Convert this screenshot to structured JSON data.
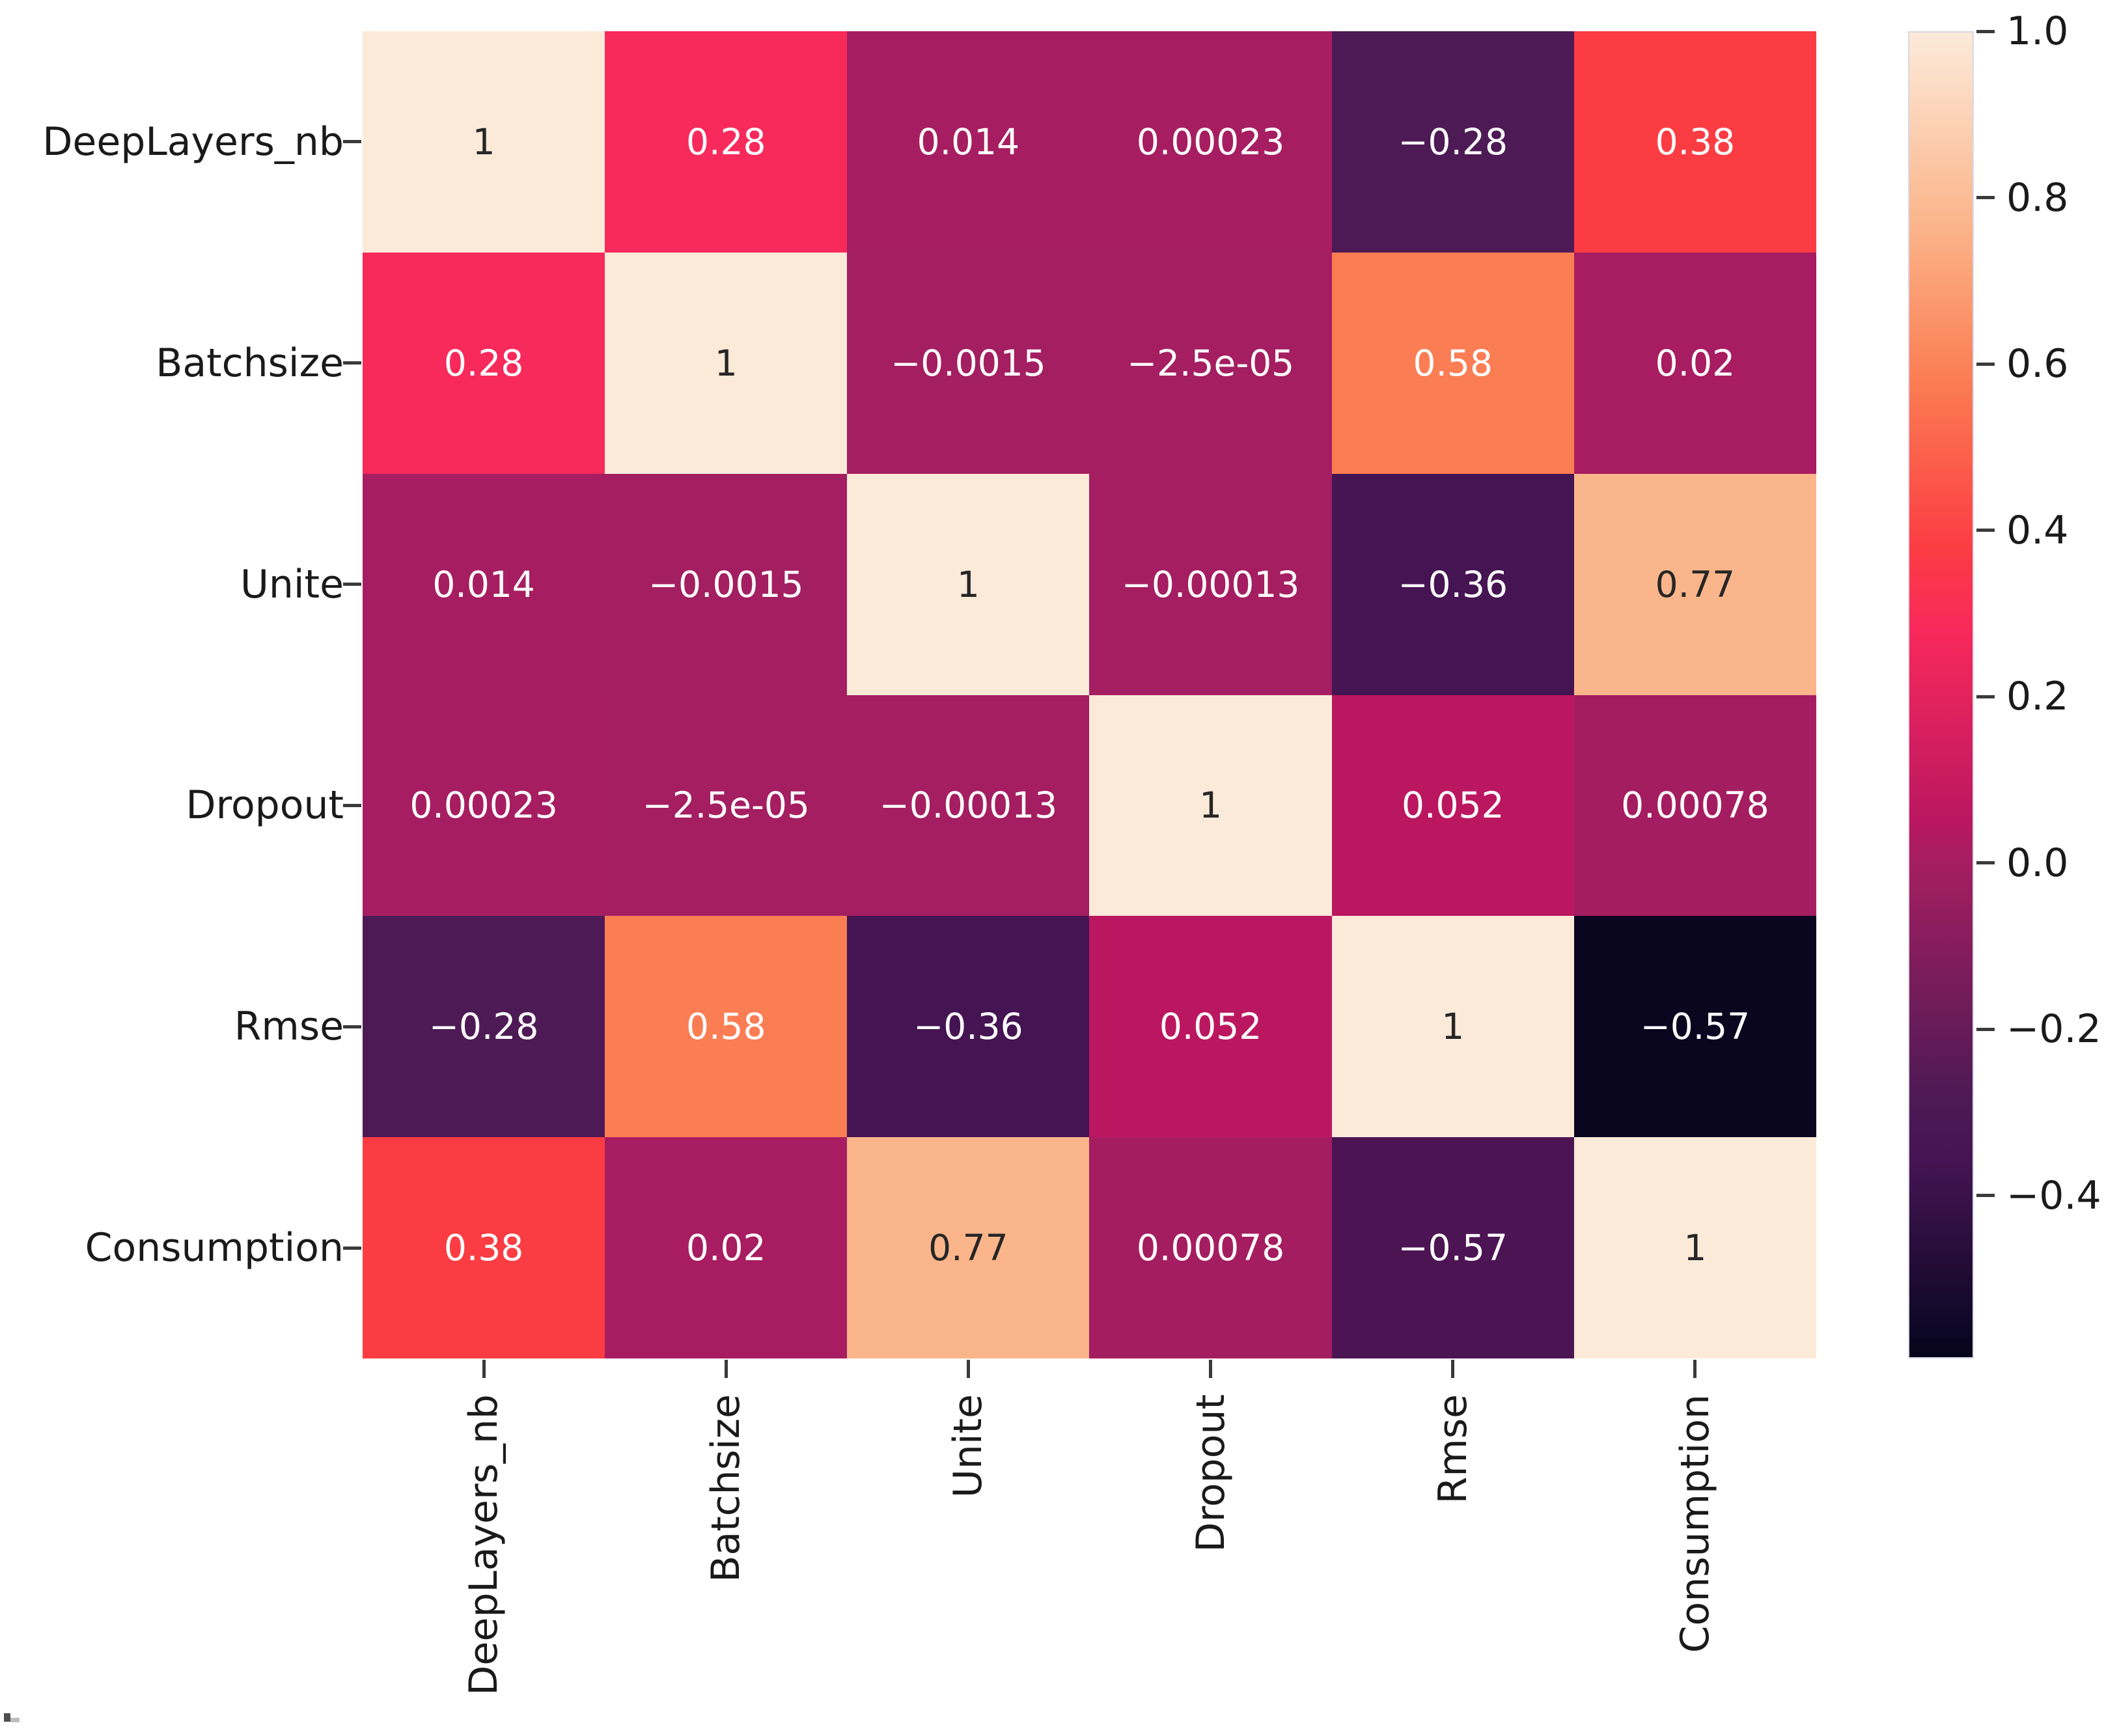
{
  "chart_data": {
    "type": "heatmap",
    "title": "",
    "variables": [
      "DeepLayers_nb",
      "Batchsize",
      "Unite",
      "Dropout",
      "Rmse",
      "Consumption"
    ],
    "matrix": [
      [
        1,
        0.28,
        0.014,
        0.00023,
        -0.28,
        0.38
      ],
      [
        0.28,
        1,
        -0.0015,
        -2.5e-05,
        0.58,
        0.02
      ],
      [
        0.014,
        -0.0015,
        1,
        -0.00013,
        -0.36,
        0.77
      ],
      [
        0.00023,
        -2.5e-05,
        -0.00013,
        1,
        0.052,
        0.00078
      ],
      [
        -0.28,
        0.58,
        -0.36,
        0.052,
        1,
        -0.57
      ],
      [
        0.38,
        0.02,
        0.77,
        0.00078,
        -0.57,
        1
      ]
    ],
    "annotations": [
      [
        "1",
        "0.28",
        "0.014",
        "0.00023",
        "−0.28",
        "0.38"
      ],
      [
        "0.28",
        "1",
        "−0.0015",
        "−2.5e-05",
        "0.58",
        "0.02"
      ],
      [
        "0.014",
        "−0.0015",
        "1",
        "−0.00013",
        "−0.36",
        "0.77"
      ],
      [
        "0.00023",
        "−2.5e-05",
        "−0.00013",
        "1",
        "0.052",
        "0.00078"
      ],
      [
        "−0.28",
        "0.58",
        "−0.36",
        "0.052",
        "1",
        "−0.57"
      ],
      [
        "0.38",
        "0.02",
        "0.77",
        "0.00078",
        "−0.57",
        "1"
      ]
    ],
    "cell_colors": [
      [
        "#FCEAD9",
        "#F8295B",
        "#A61E61",
        "#A61E61",
        "#4E1A55",
        "#FB3D43"
      ],
      [
        "#F8295B",
        "#FCEAD9",
        "#A31F61",
        "#A41E61",
        "#FB7D53",
        "#A81C61"
      ],
      [
        "#A61E61",
        "#A31F61",
        "#FCEAD9",
        "#A41E61",
        "#451452",
        "#FBB58B"
      ],
      [
        "#A61E61",
        "#A41E61",
        "#A41E61",
        "#FCEAD9",
        "#BB1760",
        "#A51D61"
      ],
      [
        "#4E1A55",
        "#FB7D53",
        "#451452",
        "#BB1760",
        "#FCEAD9",
        "#0A0620"
      ],
      [
        "#FB3D43",
        "#A81C61",
        "#FBB58B",
        "#A51D61",
        "#4D1453",
        "#FCEAD9"
      ]
    ],
    "annotation_text_colors": {
      "light": "#ffffff",
      "dark": "#262626"
    },
    "axes": {
      "x_tick_labels": [
        "DeepLayers_nb",
        "Batchsize",
        "Unite",
        "Dropout",
        "Rmse",
        "Consumption"
      ],
      "y_tick_labels": [
        "DeepLayers_nb",
        "Batchsize",
        "Unite",
        "Dropout",
        "Rmse",
        "Consumption"
      ],
      "x_label": "",
      "y_label": "",
      "grid": false,
      "x_tick_rotation_deg": 90
    },
    "colorbar": {
      "position": "right",
      "vmax": 1.0,
      "vmin": -0.596,
      "tick_labels": [
        "1.0",
        "0.8",
        "0.6",
        "0.4",
        "0.2",
        "0.0",
        "−0.2",
        "−0.4"
      ],
      "tick_values": [
        1.0,
        0.8,
        0.6,
        0.4,
        0.2,
        0.0,
        -0.2,
        -0.4
      ],
      "gradient": [
        {
          "pos": 0.0,
          "color": "#FCEAD9"
        },
        {
          "pos": 14.4,
          "color": "#FBB58B"
        },
        {
          "pos": 26.3,
          "color": "#FB7D53"
        },
        {
          "pos": 38.8,
          "color": "#FB3D43"
        },
        {
          "pos": 45.1,
          "color": "#F8295B"
        },
        {
          "pos": 59.4,
          "color": "#BB1760"
        },
        {
          "pos": 62.7,
          "color": "#A41E61"
        },
        {
          "pos": 80.2,
          "color": "#4E1A55"
        },
        {
          "pos": 85.2,
          "color": "#451452"
        },
        {
          "pos": 98.4,
          "color": "#0B0724"
        },
        {
          "pos": 100.0,
          "color": "#070418"
        }
      ],
      "colormap_name": "rocket"
    }
  }
}
